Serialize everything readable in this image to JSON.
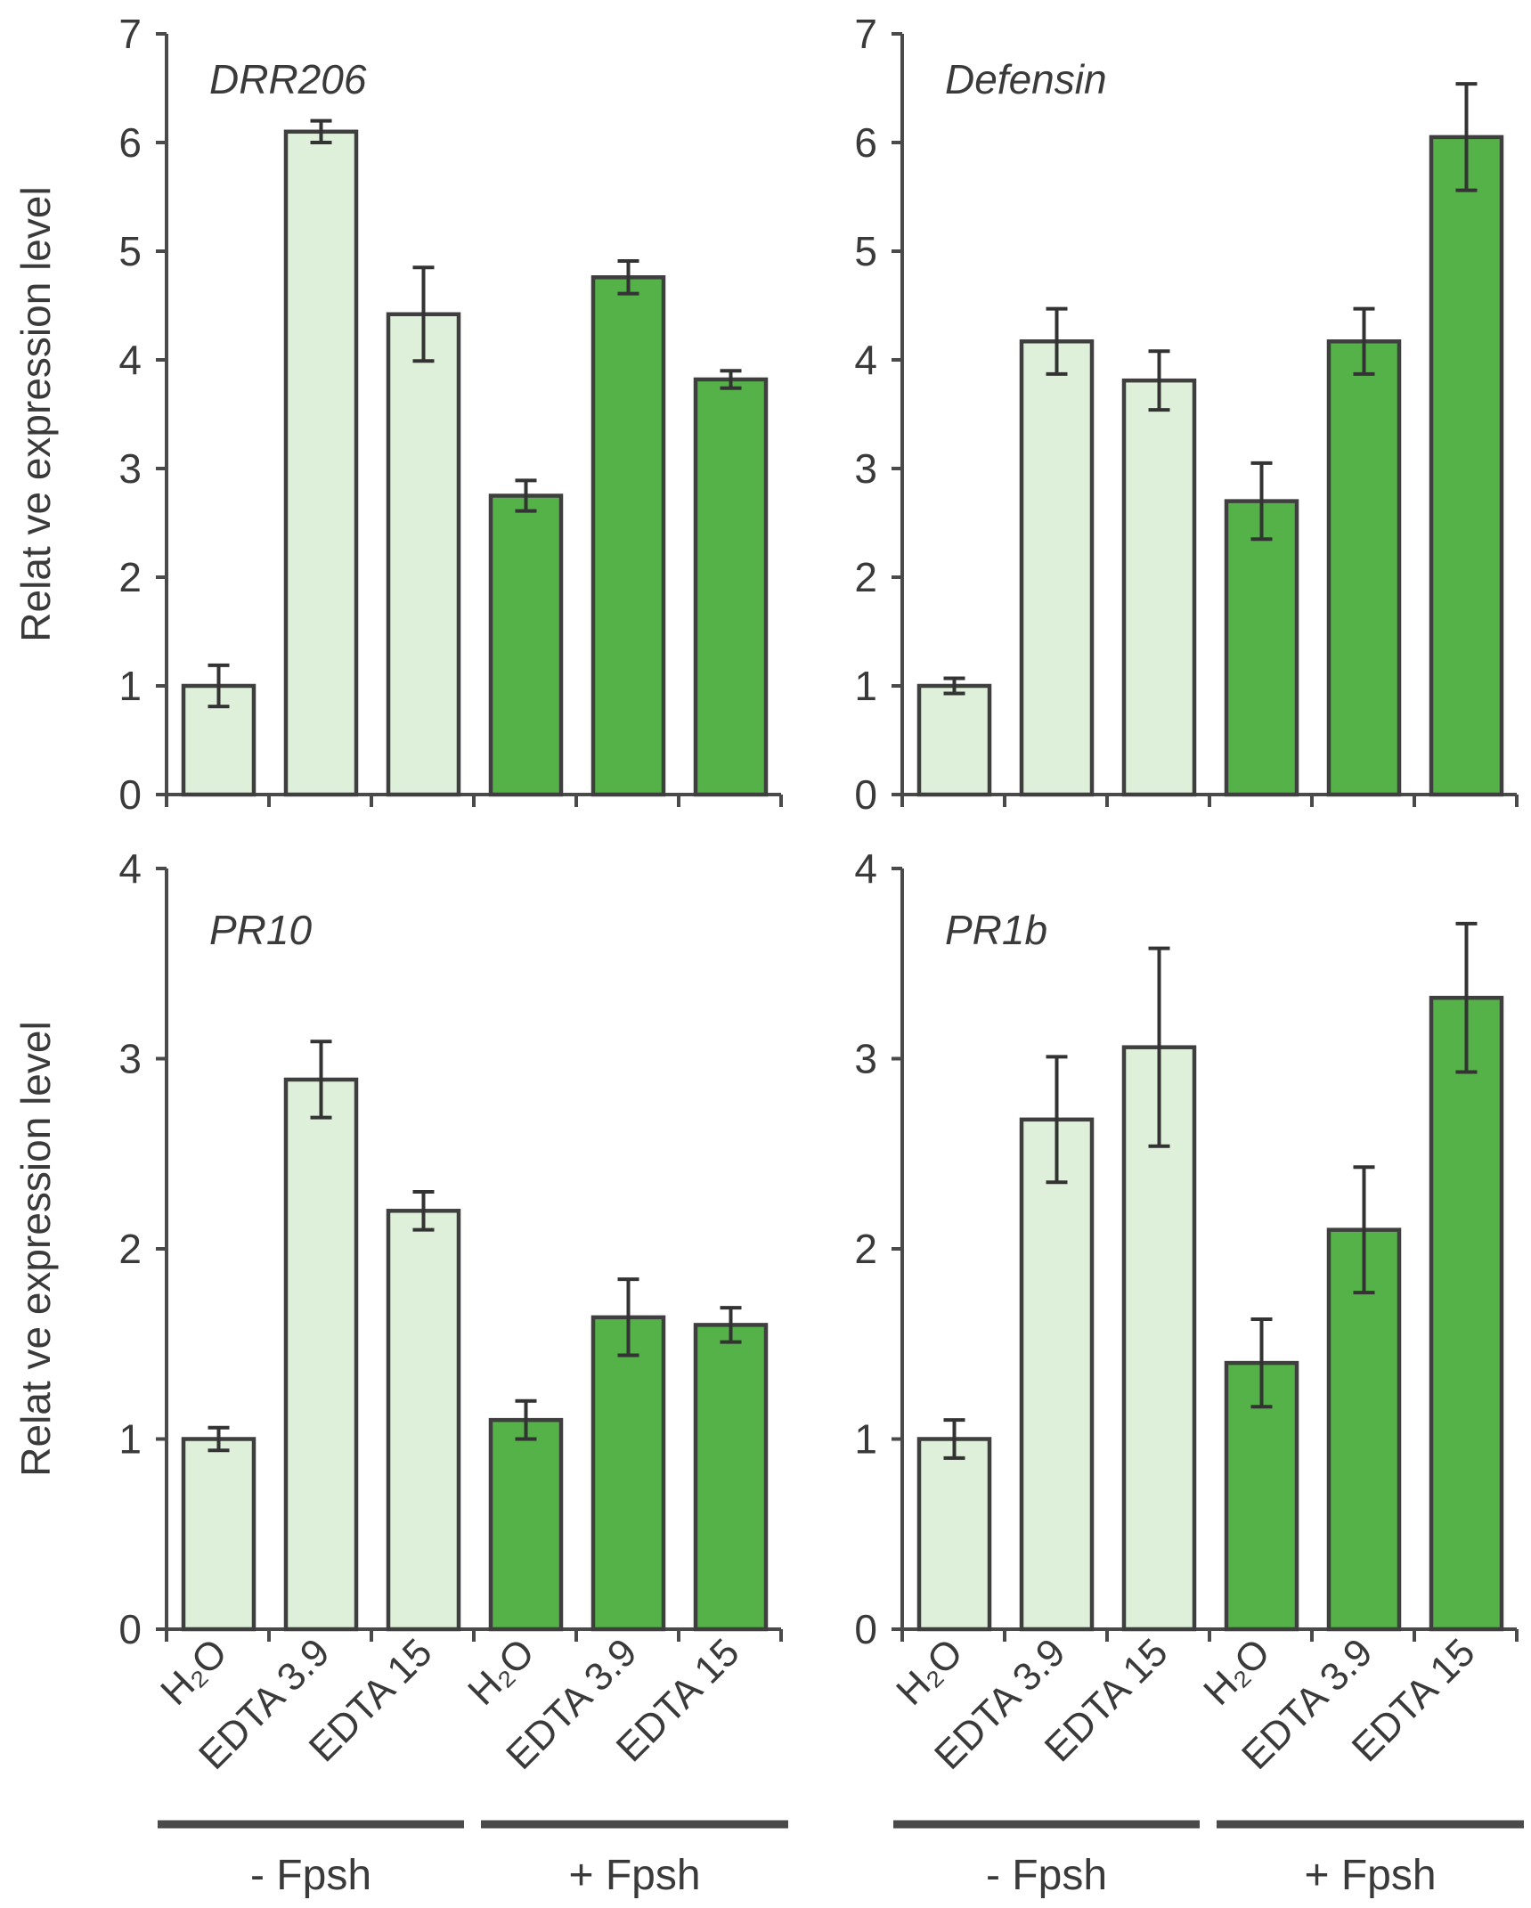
{
  "colors": {
    "minus_fpsh": "#dff0da",
    "plus_fpsh": "#55b248",
    "axis": "#4a4a4a",
    "text": "#3a3a3a"
  },
  "y_axis_label": "Relat ve expression level",
  "category_labels": [
    "H₂O",
    "EDTA 3.9",
    "EDTA 15",
    "H₂O",
    "EDTA 3.9",
    "EDTA 15"
  ],
  "group_labels": [
    "- Fpsh",
    "+ Fpsh"
  ],
  "chart_data": [
    {
      "type": "bar",
      "title": "DRR206",
      "categories": [
        "H2O",
        "EDTA 3.9",
        "EDTA 15",
        "H2O",
        "EDTA 3.9",
        "EDTA 15"
      ],
      "groups": [
        "- Fpsh",
        "- Fpsh",
        "- Fpsh",
        "+ Fpsh",
        "+ Fpsh",
        "+ Fpsh"
      ],
      "values": [
        1.0,
        6.1,
        4.42,
        2.75,
        4.76,
        3.82
      ],
      "errors": [
        0.19,
        0.1,
        0.43,
        0.14,
        0.15,
        0.08
      ],
      "ylabel": "Relat ve expression level",
      "ylim": [
        0,
        7
      ],
      "yticks": [
        0,
        1,
        2,
        3,
        4,
        5,
        6,
        7
      ]
    },
    {
      "type": "bar",
      "title": "Defensin",
      "categories": [
        "H2O",
        "EDTA 3.9",
        "EDTA 15",
        "H2O",
        "EDTA 3.9",
        "EDTA 15"
      ],
      "groups": [
        "- Fpsh",
        "- Fpsh",
        "- Fpsh",
        "+ Fpsh",
        "+ Fpsh",
        "+ Fpsh"
      ],
      "values": [
        1.0,
        4.17,
        3.81,
        2.7,
        4.17,
        6.05
      ],
      "errors": [
        0.07,
        0.3,
        0.27,
        0.35,
        0.3,
        0.49
      ],
      "ylabel": "",
      "ylim": [
        0,
        7
      ],
      "yticks": [
        0,
        1,
        2,
        3,
        4,
        5,
        6,
        7
      ]
    },
    {
      "type": "bar",
      "title": "PR10",
      "categories": [
        "H2O",
        "EDTA 3.9",
        "EDTA 15",
        "H2O",
        "EDTA 3.9",
        "EDTA 15"
      ],
      "groups": [
        "- Fpsh",
        "- Fpsh",
        "- Fpsh",
        "+ Fpsh",
        "+ Fpsh",
        "+ Fpsh"
      ],
      "values": [
        1.0,
        2.89,
        2.2,
        1.1,
        1.64,
        1.6
      ],
      "errors": [
        0.06,
        0.2,
        0.1,
        0.1,
        0.2,
        0.09
      ],
      "ylabel": "Relat ve expression level",
      "ylim": [
        0,
        4
      ],
      "yticks": [
        0,
        1,
        2,
        3,
        4
      ]
    },
    {
      "type": "bar",
      "title": "PR1b",
      "categories": [
        "H2O",
        "EDTA 3.9",
        "EDTA 15",
        "H2O",
        "EDTA 3.9",
        "EDTA 15"
      ],
      "groups": [
        "- Fpsh",
        "- Fpsh",
        "- Fpsh",
        "+ Fpsh",
        "+ Fpsh",
        "+ Fpsh"
      ],
      "values": [
        1.0,
        2.68,
        3.06,
        1.4,
        2.1,
        3.32
      ],
      "errors": [
        0.1,
        0.33,
        0.52,
        0.23,
        0.33,
        0.39
      ],
      "ylabel": "",
      "ylim": [
        0,
        4
      ],
      "yticks": [
        0,
        1,
        2,
        3,
        4
      ]
    }
  ]
}
